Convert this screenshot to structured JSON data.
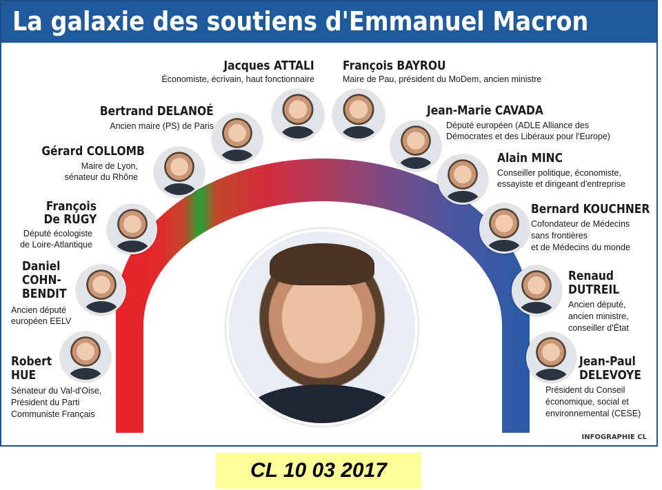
{
  "title": "La galaxie des soutiens d'Emmanuel Macron",
  "credit": "INFOGRAPHIE CL",
  "date_caption": "CL 10 03 2017",
  "colors": {
    "title_bar": "#1f5a9c",
    "arc_left": "#e8232b",
    "arc_green": "#22a335",
    "arc_right": "#2a5ba8",
    "caption_bg": "#ffff99"
  },
  "people": {
    "attali": {
      "name": [
        "Jacques ATTALI"
      ],
      "desc": [
        "Économiste, écrivain, haut fonctionnaire"
      ]
    },
    "bayrou": {
      "name": [
        "François BAYROU"
      ],
      "desc": [
        "Maire de Pau, président du MoDem, ancien ministre"
      ]
    },
    "delanoe": {
      "name": [
        "Bertrand DELANOÉ"
      ],
      "desc": [
        "Ancien maire (PS) de Paris"
      ]
    },
    "cavada": {
      "name": [
        "Jean-Marie CAVADA"
      ],
      "desc": [
        "Député européen (ADLE Alliance des",
        "Démocrates et des Libéraux pour l'Europe)"
      ]
    },
    "collomb": {
      "name": [
        "Gérard COLLOMB"
      ],
      "desc": [
        "Maire de Lyon,",
        "sénateur du Rhône"
      ]
    },
    "minc": {
      "name": [
        "Alain MINC"
      ],
      "desc": [
        "Conseiller politique, économiste,",
        "essayiste et dirigeant d'entreprise"
      ]
    },
    "rugy": {
      "name": [
        "François",
        "De RUGY"
      ],
      "desc": [
        "Député écologiste",
        "de Loire-Atlantique"
      ]
    },
    "kouchner": {
      "name": [
        "Bernard KOUCHNER"
      ],
      "desc": [
        "Cofondateur de Médecins",
        "sans frontières",
        "et de Médecins du monde"
      ]
    },
    "cohn_bendit": {
      "name": [
        "Daniel",
        "COHN-",
        "BENDIT"
      ],
      "desc": [
        "Ancien député",
        "européen EELV"
      ]
    },
    "dutreil": {
      "name": [
        "Renaud",
        "DUTREIL"
      ],
      "desc": [
        "Ancien député,",
        "ancien ministre,",
        "conseiller d'État"
      ]
    },
    "hue": {
      "name": [
        "Robert",
        "HUE"
      ],
      "desc": [
        "Sénateur du Val-d'Oise,",
        "Président du Parti",
        "Communiste Français"
      ]
    },
    "delevoye": {
      "name": [
        "Jean-Paul",
        "DELEVOYE"
      ],
      "desc": [
        "Président du Conseil",
        "économique, social et",
        "environnemental (CESE)"
      ]
    }
  }
}
